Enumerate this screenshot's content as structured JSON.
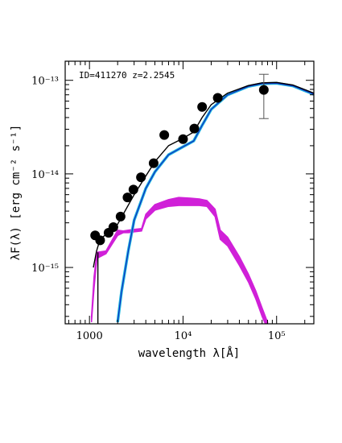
{
  "chart_data": {
    "type": "scatter",
    "annotation": "ID=411270 z=2.2545",
    "xlabel": "wavelength λ[Å]",
    "ylabel": "λF(λ) [erg cm⁻² s⁻¹]",
    "xscale": "log",
    "yscale": "log",
    "xlim": [
      550,
      250000
    ],
    "ylim": [
      2.5e-16,
      1.6e-13
    ],
    "x_ticks": [
      {
        "value": 1000,
        "label": "1000"
      },
      {
        "value": 10000,
        "label": "10⁴"
      },
      {
        "value": 100000,
        "label": "10⁵"
      }
    ],
    "y_ticks": [
      {
        "value": 1e-13,
        "label": "10⁻¹³"
      },
      {
        "value": 1e-14,
        "label": "10⁻¹⁴"
      },
      {
        "value": 1e-15,
        "label": "10⁻¹⁵"
      }
    ],
    "colors": {
      "observed": "#000000",
      "total_model": "#000000",
      "galaxy_model": "#d020d8",
      "agn_model_light": "#20b8e0",
      "agn_model_dark": "#1030c0"
    },
    "observed_points": [
      {
        "x": 1150,
        "y": 2.2e-15
      },
      {
        "x": 1300,
        "y": 1.95e-15
      },
      {
        "x": 1600,
        "y": 2.35e-15
      },
      {
        "x": 1800,
        "y": 2.7e-15
      },
      {
        "x": 2150,
        "y": 3.5e-15
      },
      {
        "x": 2550,
        "y": 5.6e-15
      },
      {
        "x": 2950,
        "y": 6.8e-15
      },
      {
        "x": 3550,
        "y": 9.2e-15
      },
      {
        "x": 4850,
        "y": 1.3e-14
      },
      {
        "x": 6300,
        "y": 2.6e-14
      },
      {
        "x": 10000,
        "y": 2.35e-14
      },
      {
        "x": 13200,
        "y": 3.05e-14
      },
      {
        "x": 16000,
        "y": 5.2e-14
      },
      {
        "x": 23500,
        "y": 6.5e-14
      },
      {
        "x": 73000,
        "y": 7.9e-14,
        "y_low": 3.9e-14,
        "y_high": 1.16e-13
      }
    ],
    "total_model": [
      {
        "x": 1100,
        "y": 1e-15
      },
      {
        "x": 1190,
        "y": 1.5e-15
      },
      {
        "x": 1300,
        "y": 2e-15
      },
      {
        "x": 1500,
        "y": 2.25e-15
      },
      {
        "x": 2000,
        "y": 2.9e-15
      },
      {
        "x": 3000,
        "y": 6e-15
      },
      {
        "x": 4000,
        "y": 9.5e-15
      },
      {
        "x": 5000,
        "y": 1.35e-14
      },
      {
        "x": 7000,
        "y": 2e-14
      },
      {
        "x": 10000,
        "y": 2.4e-14
      },
      {
        "x": 13000,
        "y": 2.8e-14
      },
      {
        "x": 16000,
        "y": 4e-14
      },
      {
        "x": 20000,
        "y": 5.5e-14
      },
      {
        "x": 30000,
        "y": 7.3e-14
      },
      {
        "x": 50000,
        "y": 8.8e-14
      },
      {
        "x": 70000,
        "y": 9.4e-14
      },
      {
        "x": 100000,
        "y": 9.5e-14
      },
      {
        "x": 150000,
        "y": 8.9e-14
      },
      {
        "x": 250000,
        "y": 7.3e-14
      }
    ],
    "agn_model": [
      {
        "x": 2000,
        "y": 2.6e-16
      },
      {
        "x": 2200,
        "y": 5.5e-16
      },
      {
        "x": 2600,
        "y": 1.5e-15
      },
      {
        "x": 3000,
        "y": 3.2e-15
      },
      {
        "x": 4000,
        "y": 7e-15
      },
      {
        "x": 5000,
        "y": 1.05e-14
      },
      {
        "x": 7000,
        "y": 1.6e-14
      },
      {
        "x": 10000,
        "y": 1.95e-14
      },
      {
        "x": 13000,
        "y": 2.25e-14
      },
      {
        "x": 16000,
        "y": 3.3e-14
      },
      {
        "x": 20000,
        "y": 4.9e-14
      },
      {
        "x": 30000,
        "y": 7e-14
      },
      {
        "x": 50000,
        "y": 8.6e-14
      },
      {
        "x": 70000,
        "y": 9.2e-14
      },
      {
        "x": 100000,
        "y": 9.3e-14
      },
      {
        "x": 150000,
        "y": 8.7e-14
      },
      {
        "x": 250000,
        "y": 7.1e-14
      }
    ],
    "galaxy_model_band": [
      {
        "x": 1050,
        "lo": 2.6e-16,
        "hi": 3e-16
      },
      {
        "x": 1120,
        "lo": 6e-16,
        "hi": 8e-16
      },
      {
        "x": 1200,
        "lo": 1.25e-15,
        "hi": 1.45e-15
      },
      {
        "x": 1500,
        "lo": 1.4e-15,
        "hi": 1.5e-15
      },
      {
        "x": 2000,
        "lo": 2.2e-15,
        "hi": 2.5e-15
      },
      {
        "x": 2300,
        "lo": 2.35e-15,
        "hi": 2.45e-15
      },
      {
        "x": 2600,
        "lo": 2.35e-15,
        "hi": 2.5e-15
      },
      {
        "x": 3000,
        "lo": 2.4e-15,
        "hi": 2.55e-15
      },
      {
        "x": 3600,
        "lo": 2.45e-15,
        "hi": 2.6e-15
      },
      {
        "x": 4000,
        "lo": 3.3e-15,
        "hi": 3.7e-15
      },
      {
        "x": 5000,
        "lo": 4.1e-15,
        "hi": 4.7e-15
      },
      {
        "x": 7000,
        "lo": 4.5e-15,
        "hi": 5.3e-15
      },
      {
        "x": 9000,
        "lo": 4.6e-15,
        "hi": 5.6e-15
      },
      {
        "x": 12000,
        "lo": 4.6e-15,
        "hi": 5.5e-15
      },
      {
        "x": 15000,
        "lo": 4.6e-15,
        "hi": 5.4e-15
      },
      {
        "x": 18000,
        "lo": 4.5e-15,
        "hi": 5.2e-15
      },
      {
        "x": 22000,
        "lo": 3.5e-15,
        "hi": 4.2e-15
      },
      {
        "x": 25000,
        "lo": 2e-15,
        "hi": 2.5e-15
      },
      {
        "x": 30000,
        "lo": 1.7e-15,
        "hi": 2.1e-15
      },
      {
        "x": 40000,
        "lo": 1.05e-15,
        "hi": 1.3e-15
      },
      {
        "x": 50000,
        "lo": 7e-16,
        "hi": 8.5e-16
      },
      {
        "x": 60000,
        "lo": 4.6e-16,
        "hi": 5.6e-16
      },
      {
        "x": 70000,
        "lo": 3e-16,
        "hi": 3.7e-16
      },
      {
        "x": 80000,
        "lo": 2.2e-16,
        "hi": 2.6e-16
      }
    ],
    "lyman_cutoff_line": {
      "x": 1230,
      "y_top": 1.45e-15
    }
  }
}
